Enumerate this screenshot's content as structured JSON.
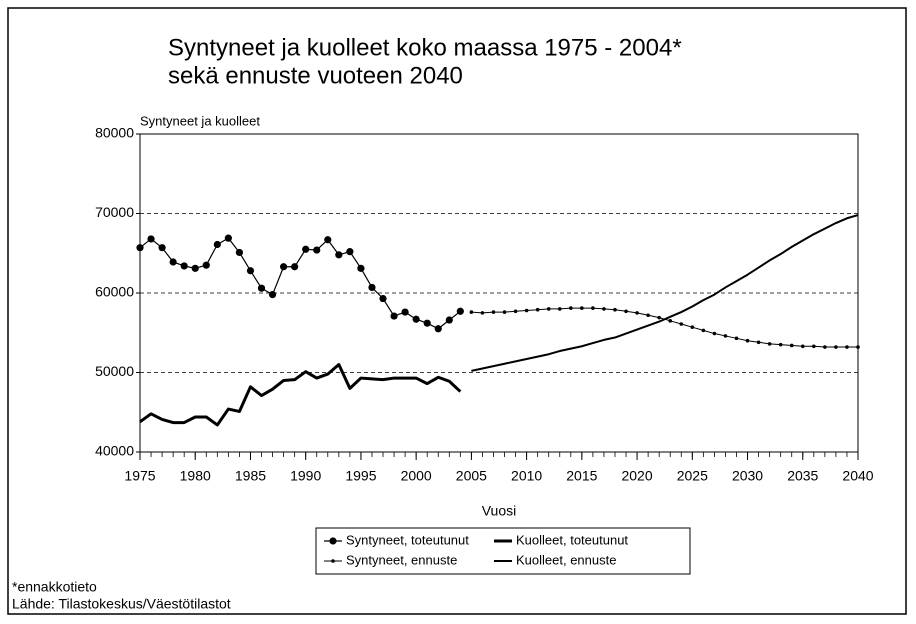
{
  "chart_data": {
    "type": "line",
    "title": [
      "Syntyneet ja kuolleet koko maassa 1975 - 2004*",
      "sekä ennuste vuoteen 2040"
    ],
    "y_label": "Syntyneet ja kuolleet",
    "x_label": "Vuosi",
    "notes": [
      "*ennakkotieto",
      "Lähde: Tilastokeskus/Väestötilastot"
    ],
    "xlim": [
      1975,
      2040
    ],
    "xticks": [
      1975,
      1980,
      1985,
      1990,
      1995,
      2000,
      2005,
      2010,
      2015,
      2020,
      2025,
      2030,
      2035,
      2040
    ],
    "ylim": [
      40000,
      80000
    ],
    "yticks": [
      40000,
      50000,
      60000,
      70000,
      80000
    ],
    "grid": true,
    "legend": "bottom",
    "x": [
      1975,
      1976,
      1977,
      1978,
      1979,
      1980,
      1981,
      1982,
      1983,
      1984,
      1985,
      1986,
      1987,
      1988,
      1989,
      1990,
      1991,
      1992,
      1993,
      1994,
      1995,
      1996,
      1997,
      1998,
      1999,
      2000,
      2001,
      2002,
      2003,
      2004,
      2005,
      2006,
      2007,
      2008,
      2009,
      2010,
      2011,
      2012,
      2013,
      2014,
      2015,
      2016,
      2017,
      2018,
      2019,
      2020,
      2021,
      2022,
      2023,
      2024,
      2025,
      2026,
      2027,
      2028,
      2029,
      2030,
      2031,
      2032,
      2033,
      2034,
      2035,
      2036,
      2037,
      2038,
      2039,
      2040
    ],
    "series": [
      {
        "name": "Syntyneet, toteutunut",
        "color": "#000000",
        "line_width": 1.2,
        "marker": "circle",
        "values": [
          65700,
          66800,
          65700,
          63900,
          63400,
          63100,
          63500,
          66100,
          66900,
          65100,
          62800,
          60600,
          59800,
          63300,
          63300,
          65500,
          65400,
          66700,
          64800,
          65200,
          63100,
          60700,
          59300,
          57100,
          57600,
          56700,
          56200,
          55500,
          56600,
          57700,
          null,
          null,
          null,
          null,
          null,
          null,
          null,
          null,
          null,
          null,
          null,
          null,
          null,
          null,
          null,
          null,
          null,
          null,
          null,
          null,
          null,
          null,
          null,
          null,
          null,
          null,
          null,
          null,
          null,
          null,
          null,
          null,
          null,
          null,
          null,
          null
        ]
      },
      {
        "name": "Kuolleet, toteutunut",
        "color": "#000000",
        "line_width": 3,
        "marker": "none",
        "values": [
          43800,
          44800,
          44100,
          43700,
          43700,
          44400,
          44400,
          43400,
          45400,
          45100,
          48200,
          47100,
          47900,
          49000,
          49100,
          50100,
          49300,
          49800,
          51000,
          48000,
          49300,
          49200,
          49100,
          49300,
          49300,
          49300,
          48600,
          49400,
          48900,
          47600,
          null,
          null,
          null,
          null,
          null,
          null,
          null,
          null,
          null,
          null,
          null,
          null,
          null,
          null,
          null,
          null,
          null,
          null,
          null,
          null,
          null,
          null,
          null,
          null,
          null,
          null,
          null,
          null,
          null,
          null,
          null,
          null,
          null,
          null,
          null,
          null
        ]
      },
      {
        "name": "Syntyneet, ennuste",
        "color": "#000000",
        "line_width": 1,
        "marker": "dot",
        "values": [
          null,
          null,
          null,
          null,
          null,
          null,
          null,
          null,
          null,
          null,
          null,
          null,
          null,
          null,
          null,
          null,
          null,
          null,
          null,
          null,
          null,
          null,
          null,
          null,
          null,
          null,
          null,
          null,
          null,
          null,
          57600,
          57500,
          57600,
          57600,
          57700,
          57800,
          57900,
          58000,
          58000,
          58100,
          58100,
          58100,
          58000,
          57900,
          57700,
          57500,
          57200,
          56900,
          56500,
          56100,
          55700,
          55300,
          54900,
          54600,
          54300,
          54000,
          53800,
          53600,
          53500,
          53400,
          53300,
          53300,
          53200,
          53200,
          53200,
          53200
        ]
      },
      {
        "name": "Kuolleet, ennuste",
        "color": "#000000",
        "line_width": 2,
        "marker": "none",
        "values": [
          null,
          null,
          null,
          null,
          null,
          null,
          null,
          null,
          null,
          null,
          null,
          null,
          null,
          null,
          null,
          null,
          null,
          null,
          null,
          null,
          null,
          null,
          null,
          null,
          null,
          null,
          null,
          null,
          null,
          null,
          50200,
          50500,
          50800,
          51100,
          51400,
          51700,
          52000,
          52300,
          52700,
          53000,
          53300,
          53700,
          54100,
          54400,
          54900,
          55400,
          55900,
          56400,
          57000,
          57600,
          58300,
          59100,
          59800,
          60700,
          61500,
          62300,
          63200,
          64100,
          64900,
          65800,
          66600,
          67400,
          68100,
          68800,
          69400,
          69800
        ]
      }
    ]
  }
}
